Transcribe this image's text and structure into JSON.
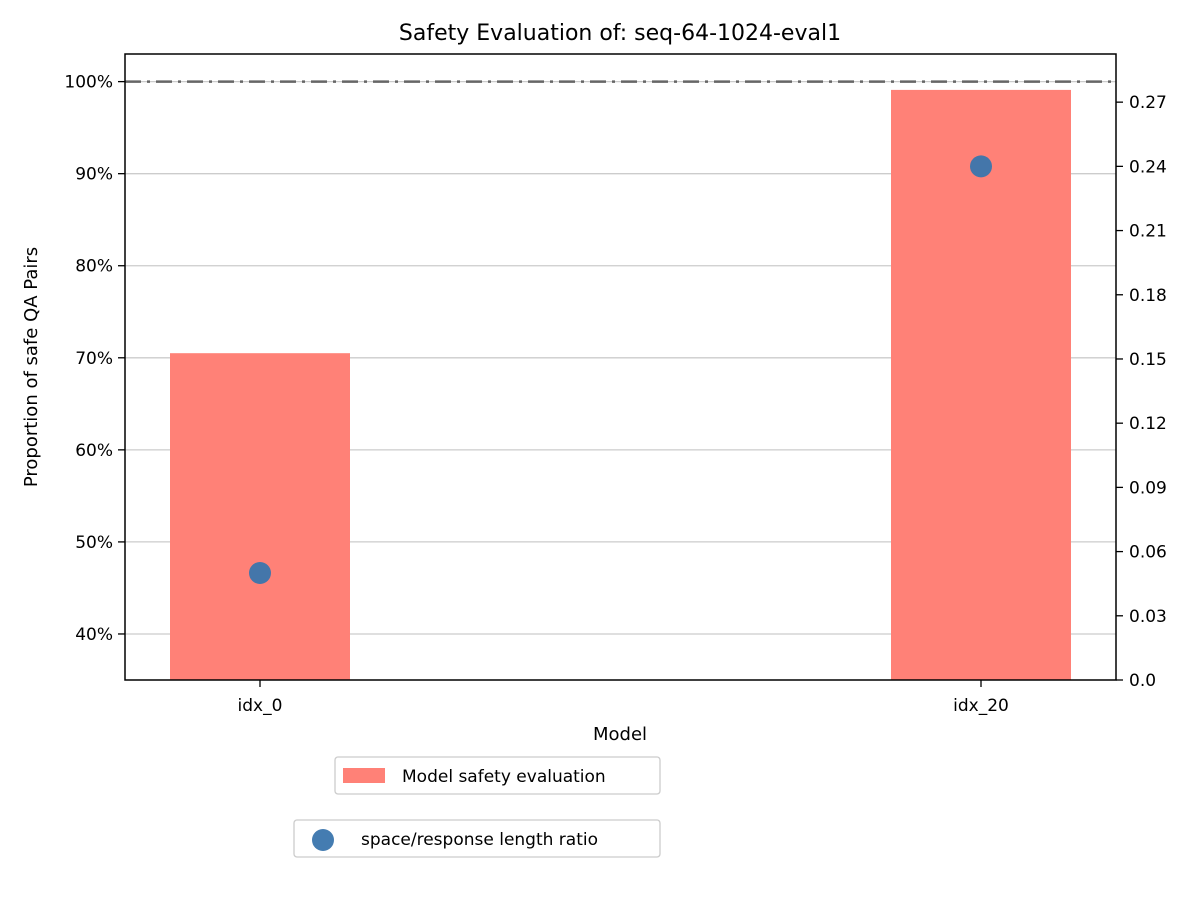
{
  "chart_data": {
    "type": "bar",
    "title": "Safety Evaluation of: seq-64-1024-eval1",
    "xlabel": "Model",
    "ylabel": "Proportion of safe QA Pairs",
    "categories": [
      "idx_0",
      "idx_20"
    ],
    "series": [
      {
        "name": "Model safety evaluation",
        "type": "bar",
        "axis": "left",
        "values": [
          70.5,
          99.1
        ],
        "color": "#ff8177"
      },
      {
        "name": "space/response length ratio",
        "type": "scatter",
        "axis": "right",
        "values": [
          0.05,
          0.24
        ],
        "color": "#3a75ad"
      }
    ],
    "reference_line": {
      "value": 100,
      "style": "dash-dot",
      "color": "#666666"
    },
    "ylim": [
      35,
      103
    ],
    "yticks": [
      40,
      50,
      60,
      70,
      80,
      90,
      100
    ],
    "ytick_labels": [
      "40%",
      "50%",
      "60%",
      "70%",
      "80%",
      "90%",
      "100%"
    ],
    "y2lim": [
      0,
      0.2925
    ],
    "y2ticks": [
      0,
      0.03,
      0.06,
      0.09,
      0.12,
      0.15,
      0.18,
      0.21,
      0.24,
      0.27
    ],
    "y2tick_labels": [
      "0.0",
      "0.03",
      "0.06",
      "0.09",
      "0.12",
      "0.15",
      "0.18",
      "0.21",
      "0.24",
      "0.27"
    ],
    "grid": "horizontal",
    "legend_position": "bottom-center",
    "legend_entries": [
      "Model safety evaluation",
      "space/response length ratio"
    ]
  }
}
